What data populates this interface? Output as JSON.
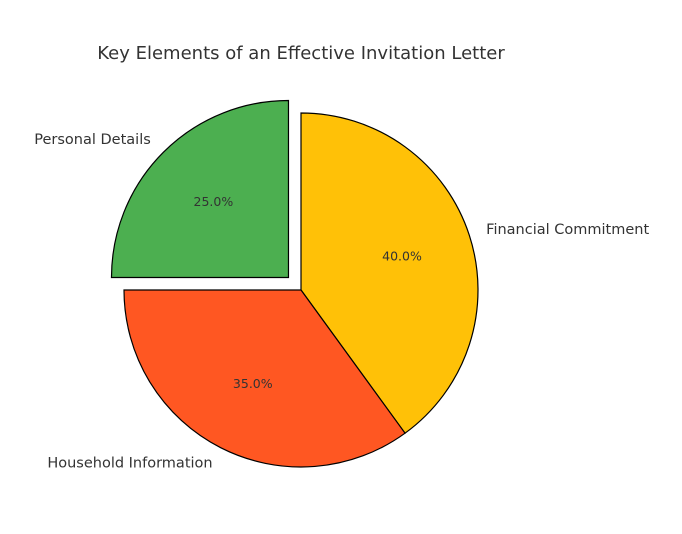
{
  "chart_data": {
    "type": "pie",
    "title": "Key Elements of an Effective Invitation Letter",
    "categories": [
      "Financial Commitment",
      "Household Information",
      "Personal Details"
    ],
    "values": [
      40,
      35,
      25
    ],
    "value_labels": [
      "40.0%",
      "35.0%",
      "25.0%"
    ],
    "colors": [
      "#ffc107",
      "#ff5722",
      "#4caf50"
    ],
    "explode": [
      0,
      0,
      0.1
    ],
    "start_angle": 90,
    "clockwise": true
  }
}
